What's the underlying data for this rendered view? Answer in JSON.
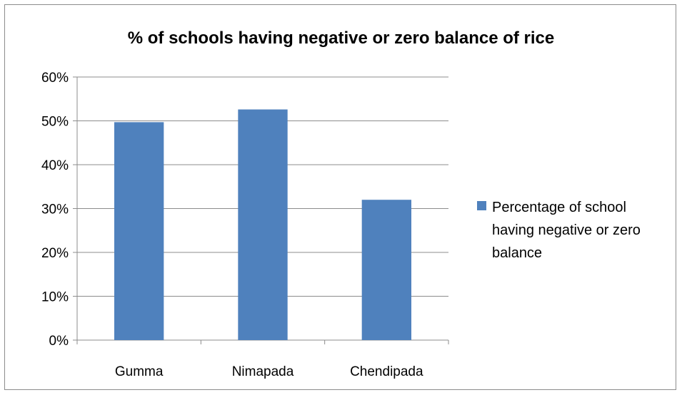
{
  "chart_data": {
    "type": "bar",
    "title": "% of schools having negative or zero balance of rice",
    "categories": [
      "Gumma",
      "Nimapada",
      "Chendipada"
    ],
    "series": [
      {
        "name": "Percentage of school having negative or zero balance",
        "values": [
          0.497,
          0.526,
          0.32
        ],
        "color": "#4f81bd"
      }
    ],
    "ylim": [
      0,
      0.6
    ],
    "yticks": [
      0,
      0.1,
      0.2,
      0.3,
      0.4,
      0.5,
      0.6
    ],
    "ytick_labels": [
      "0%",
      "10%",
      "20%",
      "30%",
      "40%",
      "50%",
      "60%"
    ],
    "xlabel": "",
    "ylabel": "",
    "grid": true,
    "legend_position": "right"
  }
}
